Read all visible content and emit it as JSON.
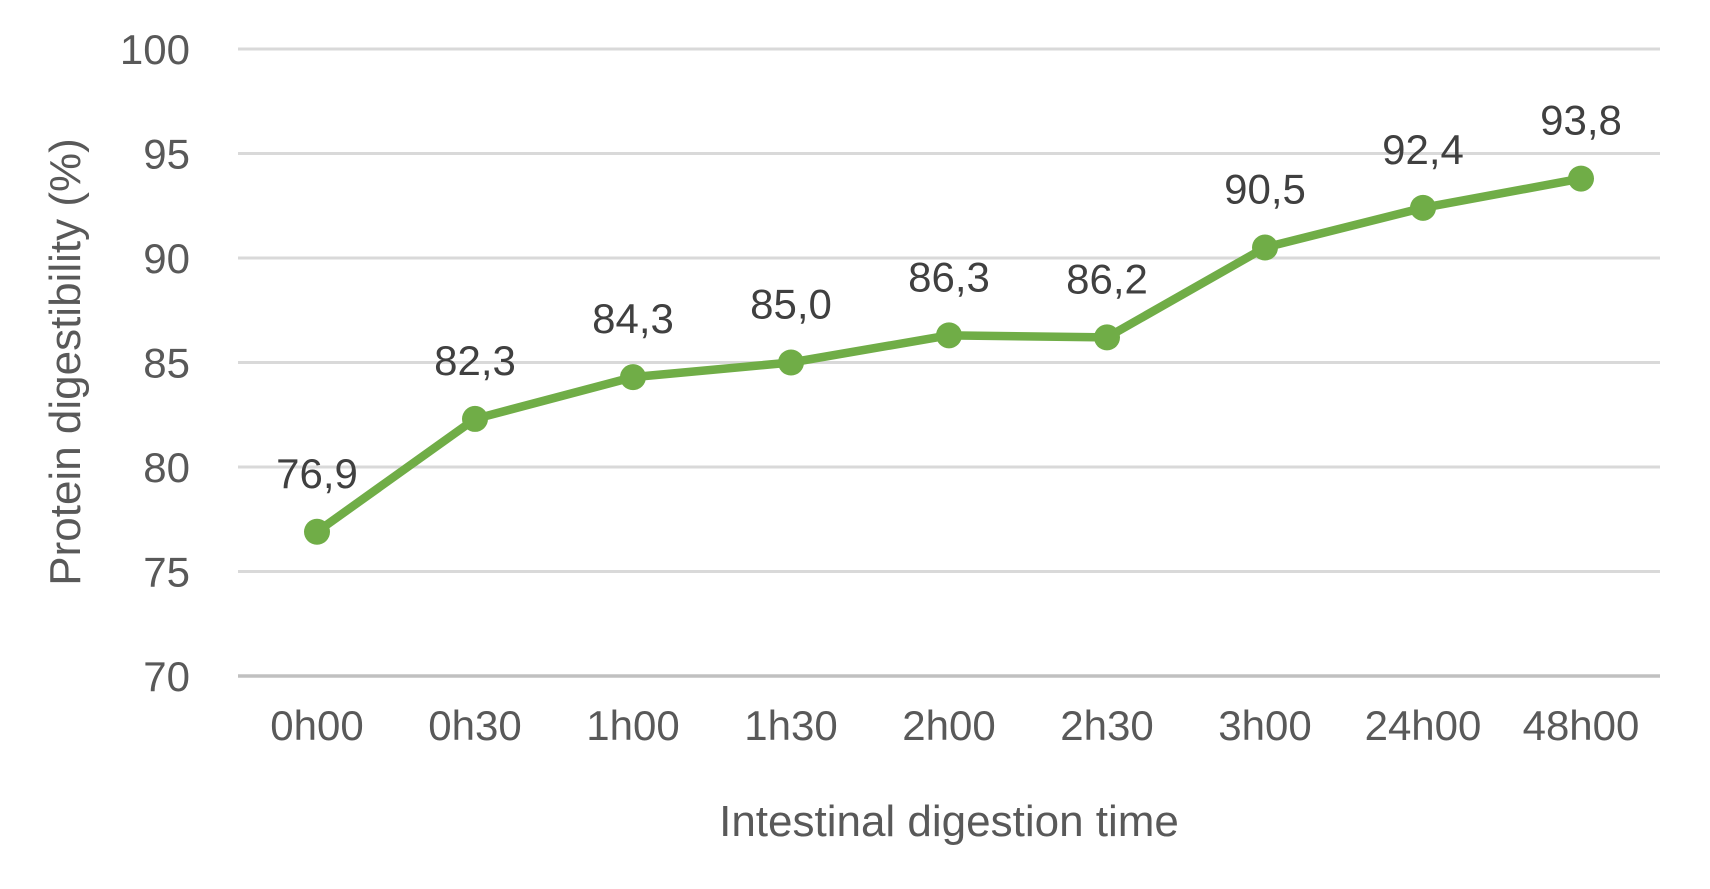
{
  "chart_data": {
    "type": "line",
    "title": "",
    "categories": [
      "0h00",
      "0h30",
      "1h00",
      "1h30",
      "2h00",
      "2h30",
      "3h00",
      "24h00",
      "48h00"
    ],
    "series": [
      {
        "name": "Protein digestibility",
        "values": [
          76.9,
          82.3,
          84.3,
          85.0,
          86.3,
          86.2,
          90.5,
          92.4,
          93.8
        ],
        "point_labels": [
          "76,9",
          "82,3",
          "84,3",
          "85,0",
          "86,3",
          "86,2",
          "90,5",
          "92,4",
          "93,8"
        ],
        "color": "#70AD47"
      }
    ],
    "xlabel": "Intestinal digestion time",
    "ylabel": "Protein digestibility (%)",
    "ylim": [
      70,
      100
    ],
    "ytick_interval": 5,
    "ytick_labels": [
      "100",
      "95",
      "90",
      "85",
      "80",
      "75",
      "70"
    ],
    "grid": "horizontal-only",
    "legend": "none",
    "decimal_separator": ","
  },
  "colors": {
    "series_line": "#70AD47",
    "gridline": "#D9D9D9",
    "axis_line": "#C0C0C0",
    "tick_text": "#595959",
    "data_label_text": "#404040",
    "axis_title_text": "#595959",
    "background": "#FFFFFF"
  }
}
